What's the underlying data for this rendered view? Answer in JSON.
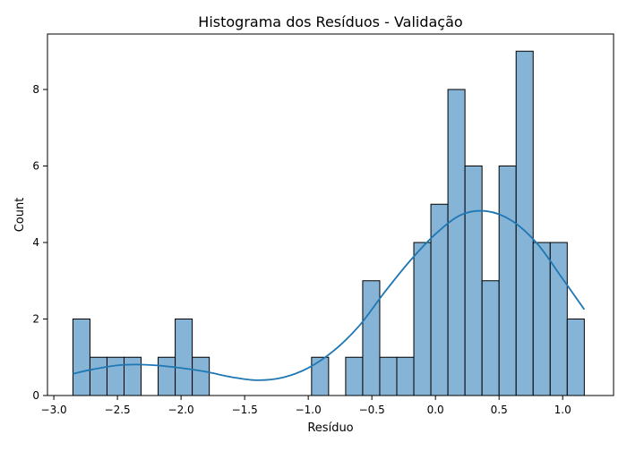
{
  "chart_data": {
    "type": "bar",
    "title": "Histograma dos Resíduos - Validação",
    "xlabel": "Resíduo",
    "ylabel": "Count",
    "xlim": [
      -3.05,
      1.4
    ],
    "ylim": [
      0,
      9.45
    ],
    "xticks": [
      -3.0,
      -2.5,
      -2.0,
      -1.5,
      -1.0,
      -0.5,
      0.0,
      0.5,
      1.0
    ],
    "xtick_labels": [
      "−3.0",
      "−2.5",
      "−2.0",
      "−1.5",
      "−1.0",
      "−0.5",
      "0.0",
      "0.5",
      "1.0"
    ],
    "yticks": [
      0,
      2,
      4,
      6,
      8
    ],
    "ytick_labels": [
      "0",
      "2",
      "4",
      "6",
      "8"
    ],
    "grid": false,
    "legend": "none",
    "bins": [
      {
        "x0": -2.85,
        "x1": -2.716,
        "count": 2
      },
      {
        "x0": -2.716,
        "x1": -2.582,
        "count": 1
      },
      {
        "x0": -2.582,
        "x1": -2.448,
        "count": 1
      },
      {
        "x0": -2.448,
        "x1": -2.314,
        "count": 1
      },
      {
        "x0": -2.314,
        "x1": -2.18,
        "count": 0
      },
      {
        "x0": -2.18,
        "x1": -2.046,
        "count": 1
      },
      {
        "x0": -2.046,
        "x1": -1.912,
        "count": 2
      },
      {
        "x0": -1.912,
        "x1": -1.778,
        "count": 1
      },
      {
        "x0": -1.778,
        "x1": -1.644,
        "count": 0
      },
      {
        "x0": -1.644,
        "x1": -1.51,
        "count": 0
      },
      {
        "x0": -1.51,
        "x1": -1.376,
        "count": 0
      },
      {
        "x0": -1.376,
        "x1": -1.242,
        "count": 0
      },
      {
        "x0": -1.242,
        "x1": -1.108,
        "count": 0
      },
      {
        "x0": -1.108,
        "x1": -0.974,
        "count": 0
      },
      {
        "x0": -0.974,
        "x1": -0.84,
        "count": 1
      },
      {
        "x0": -0.84,
        "x1": -0.706,
        "count": 0
      },
      {
        "x0": -0.706,
        "x1": -0.572,
        "count": 1
      },
      {
        "x0": -0.572,
        "x1": -0.438,
        "count": 3
      },
      {
        "x0": -0.438,
        "x1": -0.304,
        "count": 1
      },
      {
        "x0": -0.304,
        "x1": -0.17,
        "count": 1
      },
      {
        "x0": -0.17,
        "x1": -0.036,
        "count": 4
      },
      {
        "x0": -0.036,
        "x1": 0.098,
        "count": 5
      },
      {
        "x0": 0.098,
        "x1": 0.232,
        "count": 8
      },
      {
        "x0": 0.232,
        "x1": 0.366,
        "count": 6
      },
      {
        "x0": 0.366,
        "x1": 0.5,
        "count": 3
      },
      {
        "x0": 0.5,
        "x1": 0.634,
        "count": 6
      },
      {
        "x0": 0.634,
        "x1": 0.768,
        "count": 9
      },
      {
        "x0": 0.768,
        "x1": 0.902,
        "count": 4
      },
      {
        "x0": 0.902,
        "x1": 1.036,
        "count": 4
      },
      {
        "x0": 1.036,
        "x1": 1.17,
        "count": 2
      }
    ],
    "kde": {
      "x": [
        -2.85,
        -2.7,
        -2.5,
        -2.35,
        -2.2,
        -2.0,
        -1.8,
        -1.6,
        -1.4,
        -1.2,
        -1.0,
        -0.8,
        -0.6,
        -0.4,
        -0.2,
        0.0,
        0.2,
        0.4,
        0.6,
        0.8,
        1.0,
        1.17
      ],
      "y": [
        0.57,
        0.68,
        0.79,
        0.81,
        0.79,
        0.72,
        0.62,
        0.48,
        0.4,
        0.47,
        0.72,
        1.17,
        1.82,
        2.7,
        3.52,
        4.22,
        4.72,
        4.82,
        4.57,
        3.97,
        3.05,
        2.25
      ]
    },
    "colors": {
      "bar_fill": "#86b4d6",
      "bar_edge": "#000000",
      "kde_line": "#1f77b4"
    }
  }
}
